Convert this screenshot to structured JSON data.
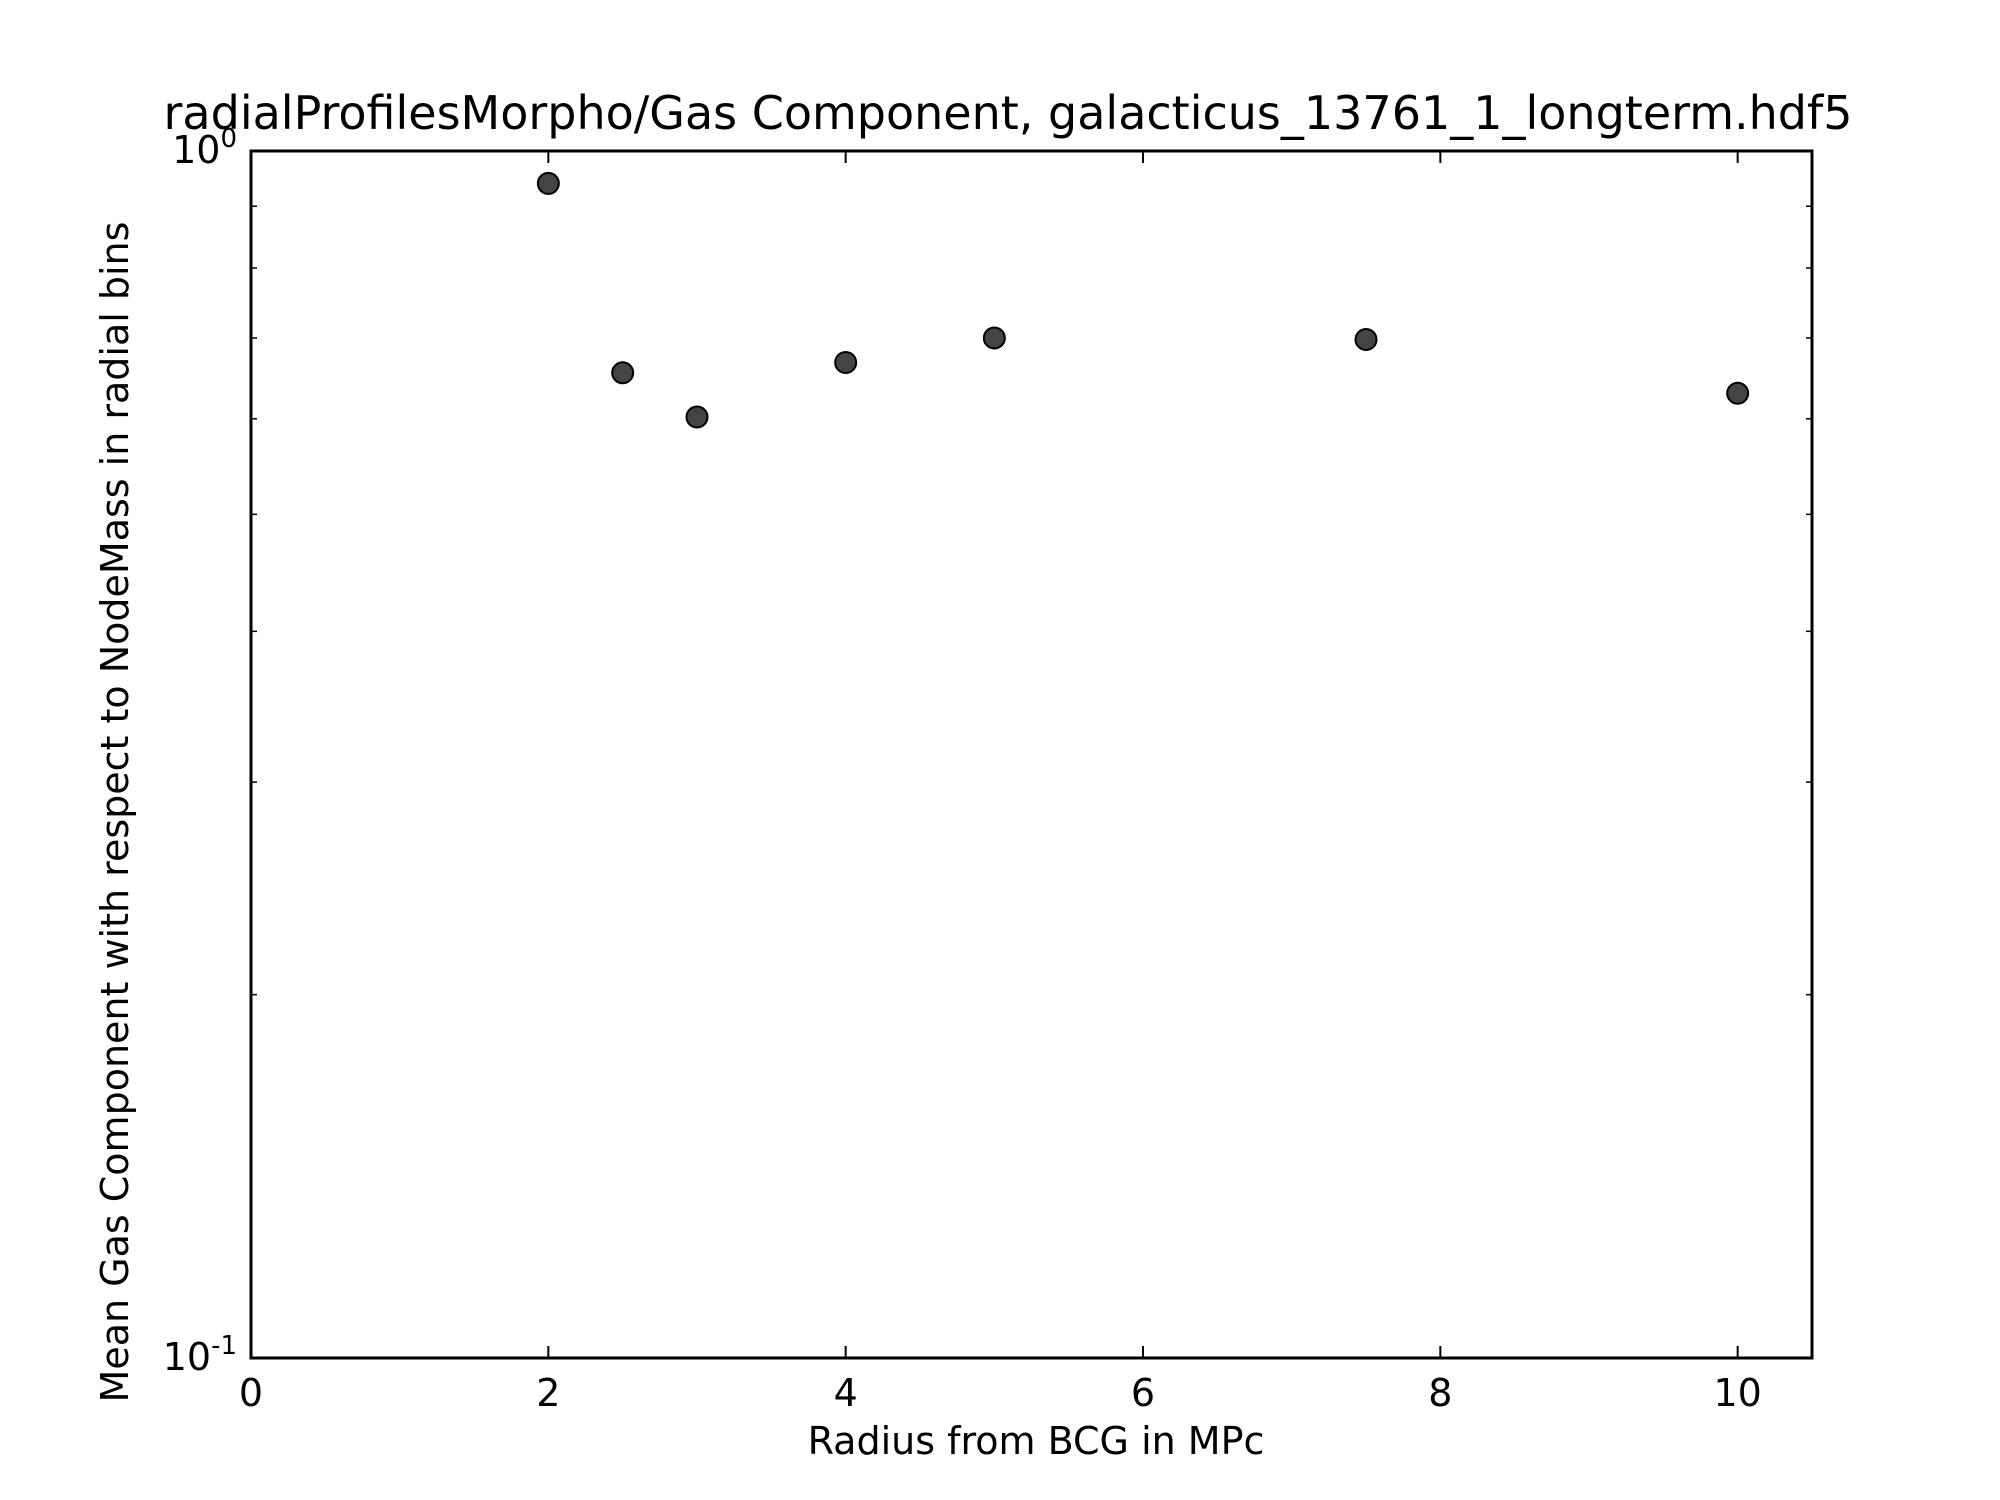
{
  "chart_data": {
    "type": "scatter",
    "title": "radialProfilesMorpho/Gas Component, galacticus_13761_1_longterm.hdf5",
    "xlabel": "Radius from BCG in MPc",
    "ylabel": "Mean Gas Component with respect to NodeMass in radial bins",
    "x_scale": "linear",
    "y_scale": "log",
    "xlim": [
      0,
      10.5
    ],
    "ylim": [
      0.1,
      1.0
    ],
    "grid": false,
    "legend": "none",
    "x_ticks": [
      0,
      2,
      4,
      6,
      8,
      10
    ],
    "x_tick_labels": [
      "0",
      "2",
      "4",
      "6",
      "8",
      "10"
    ],
    "y_major_ticks": [
      0.1,
      1.0
    ],
    "y_tick_labels": [
      {
        "base": "10",
        "exp": "-1"
      },
      {
        "base": "10",
        "exp": "0"
      }
    ],
    "y_minor_ticks": [
      0.2,
      0.3,
      0.4,
      0.5,
      0.6,
      0.7,
      0.8,
      0.9
    ],
    "series": [
      {
        "x": [
          2.0,
          2.5,
          3.0,
          4.0,
          5.0,
          7.5,
          10.0
        ],
        "y": [
          0.94,
          0.655,
          0.602,
          0.668,
          0.7,
          0.698,
          0.63
        ],
        "color": "#444444",
        "edge_color": "#000000"
      }
    ]
  }
}
